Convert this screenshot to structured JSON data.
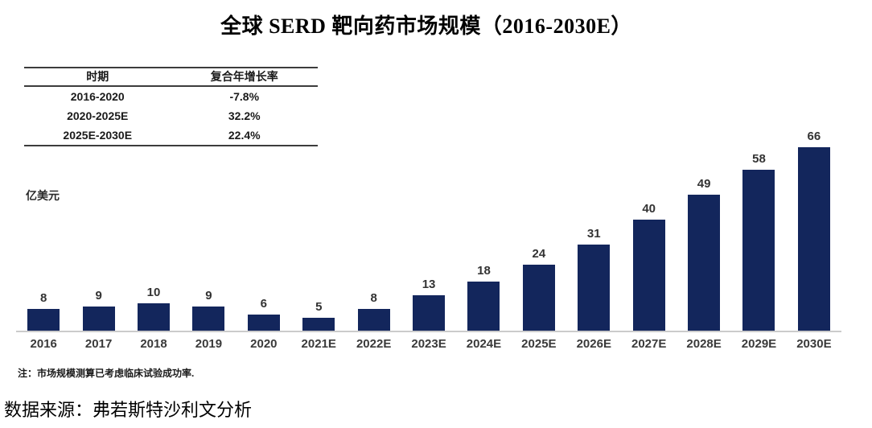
{
  "title": "全球 SERD 靶向药市场规模（2016-2030E）",
  "cagr_table": {
    "headers": [
      "时期",
      "复合年增长率"
    ],
    "rows": [
      {
        "period": "2016-2020",
        "cagr": "-7.8%"
      },
      {
        "period": "2020-2025E",
        "cagr": "32.2%"
      },
      {
        "period": "2025E-2030E",
        "cagr": "22.4%"
      }
    ]
  },
  "unit_label": "亿美元",
  "note": "注：市场规模测算已考虑临床试验成功率.",
  "source": "数据来源：弗若斯特沙利文分析",
  "colors": {
    "bar": "#13265c",
    "axis_line": "#cbcbcb"
  },
  "chart_data": {
    "type": "bar",
    "title": "全球 SERD 靶向药市场规模（2016-2030E）",
    "categories": [
      "2016",
      "2017",
      "2018",
      "2019",
      "2020",
      "2021E",
      "2022E",
      "2023E",
      "2024E",
      "2025E",
      "2026E",
      "2027E",
      "2028E",
      "2029E",
      "2030E"
    ],
    "values": [
      8,
      9,
      10,
      9,
      6,
      5,
      8,
      13,
      18,
      24,
      31,
      40,
      49,
      58,
      66
    ],
    "xlabel": "",
    "ylabel": "亿美元",
    "ylim": [
      0,
      70
    ],
    "data_labels": true,
    "grid": false,
    "legend": false
  }
}
